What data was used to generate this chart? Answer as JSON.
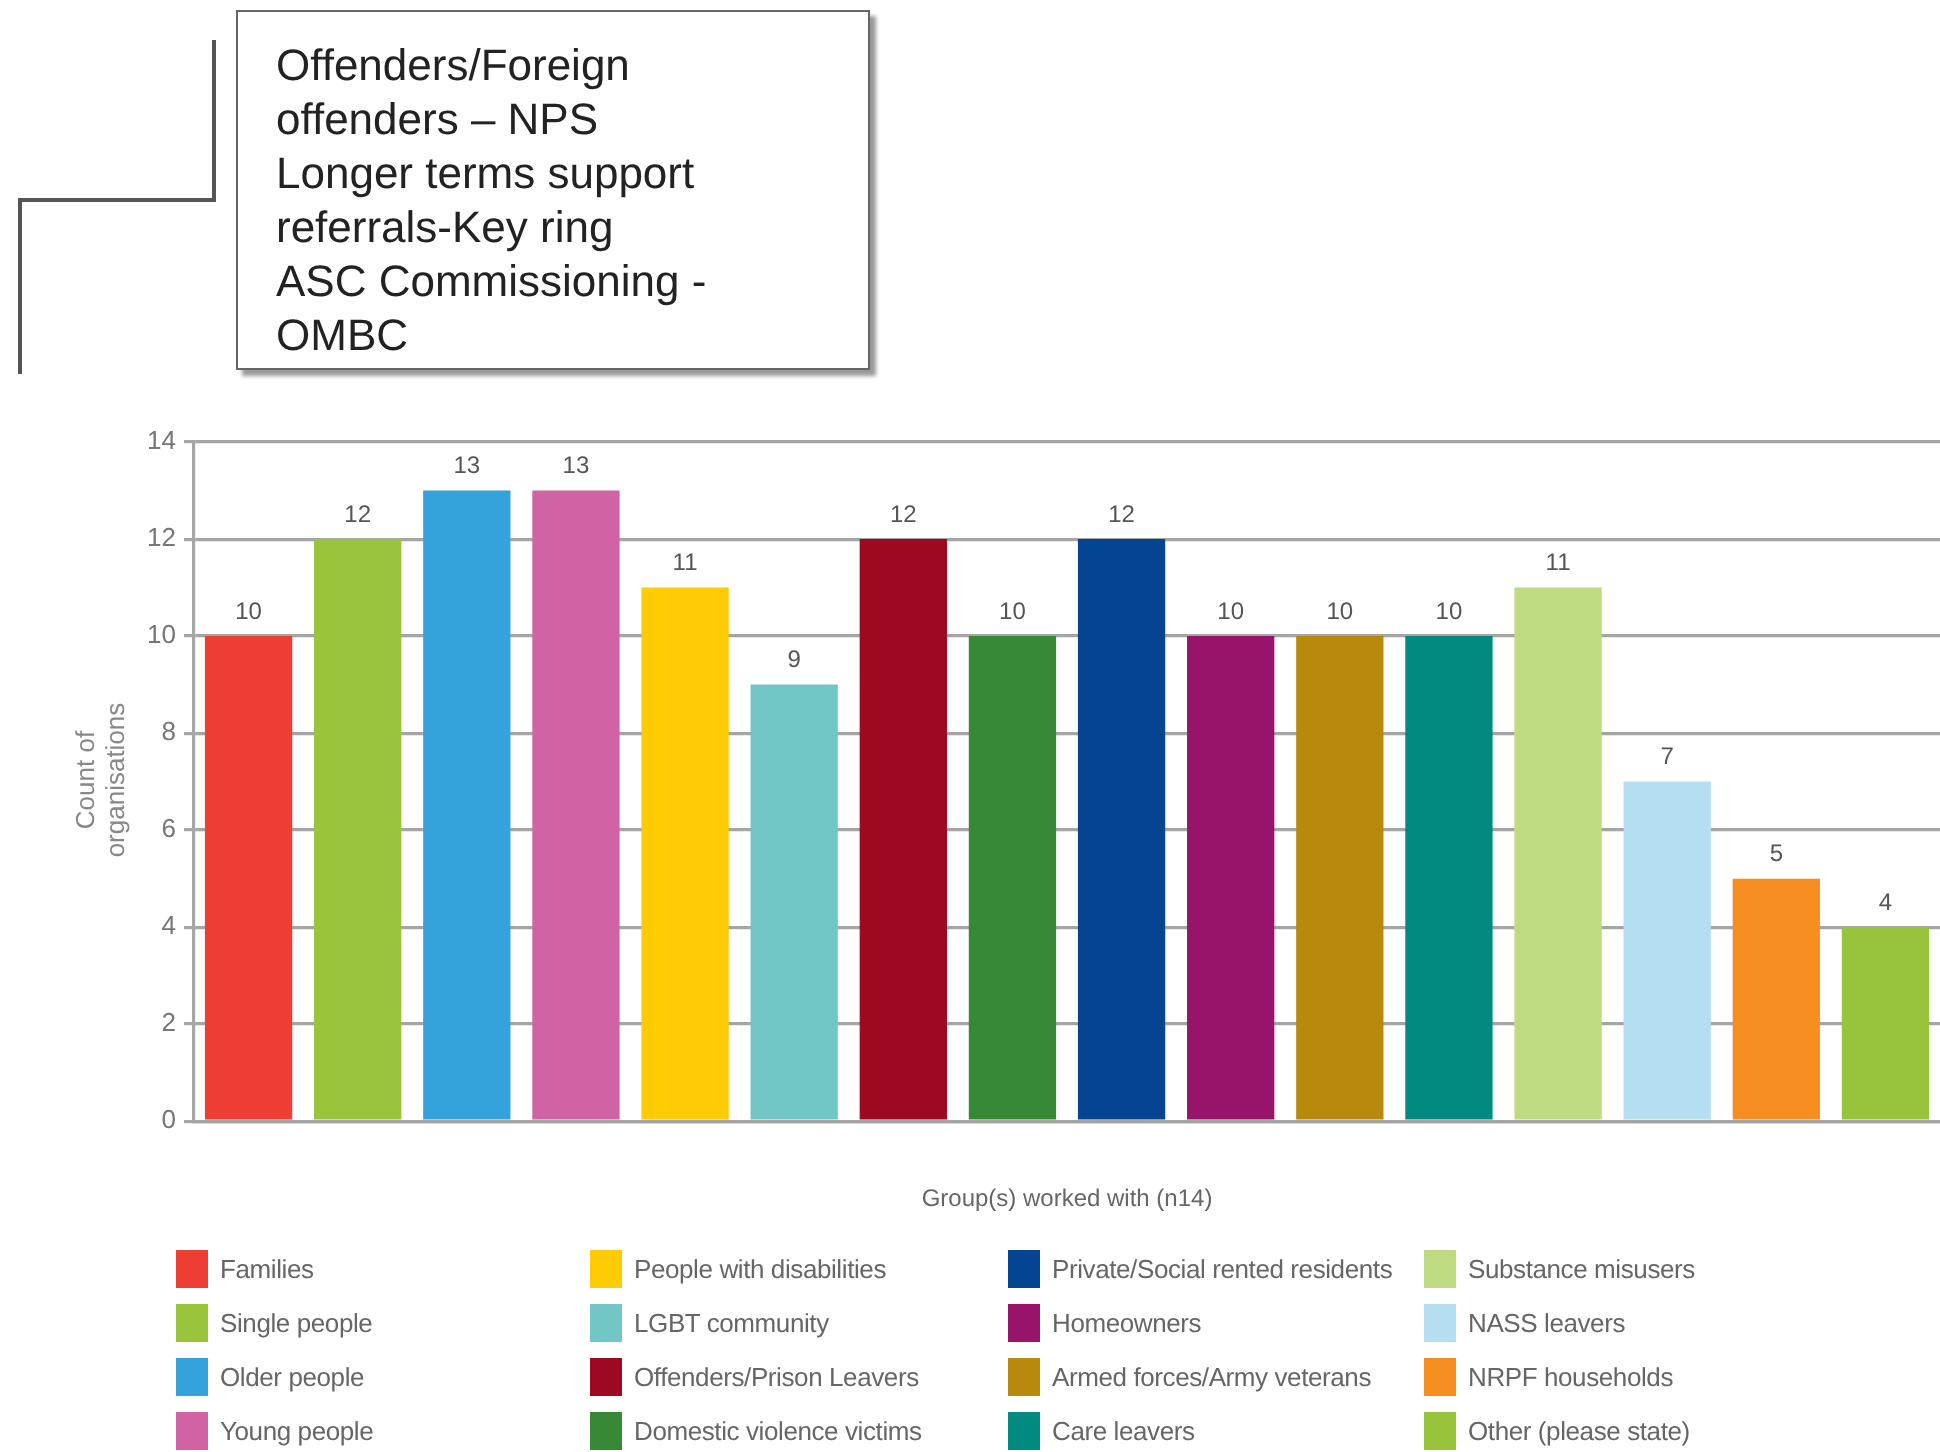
{
  "chart_data": {
    "type": "bar",
    "ylabel": "Count of organisations",
    "xlabel": "Group(s) worked with (n14)",
    "categories": [
      null,
      null,
      null,
      null,
      null,
      null,
      null,
      null,
      null,
      null,
      null,
      null,
      null,
      null,
      null,
      null
    ],
    "series": [
      {
        "name": "Families",
        "color": "#ee3e33",
        "values": [
          10,
          null,
          null,
          null,
          null,
          null,
          null,
          null,
          null,
          null,
          null,
          null,
          null,
          null,
          null,
          null
        ]
      },
      {
        "name": "Single people",
        "color": "#99c43c",
        "values": [
          null,
          12,
          null,
          null,
          null,
          null,
          null,
          null,
          null,
          null,
          null,
          null,
          null,
          null,
          null,
          null
        ]
      },
      {
        "name": "Older people",
        "color": "#34a3dc",
        "values": [
          null,
          null,
          13,
          null,
          null,
          null,
          null,
          null,
          null,
          null,
          null,
          null,
          null,
          null,
          null,
          null
        ]
      },
      {
        "name": "Young people",
        "color": "#d063a3",
        "values": [
          null,
          null,
          null,
          13,
          null,
          null,
          null,
          null,
          null,
          null,
          null,
          null,
          null,
          null,
          null,
          null
        ]
      },
      {
        "name": "People with disabilities",
        "color": "#ffcb05",
        "values": [
          null,
          null,
          null,
          null,
          11,
          null,
          null,
          null,
          null,
          null,
          null,
          null,
          null,
          null,
          null,
          null
        ]
      },
      {
        "name": "LGBT community",
        "color": "#72c7c6",
        "values": [
          null,
          null,
          null,
          null,
          null,
          9,
          null,
          null,
          null,
          null,
          null,
          null,
          null,
          null,
          null,
          null
        ]
      },
      {
        "name": "Offenders/Prison Leavers",
        "color": "#9e0820",
        "values": [
          null,
          null,
          null,
          null,
          null,
          null,
          12,
          null,
          null,
          null,
          null,
          null,
          null,
          null,
          null,
          null
        ]
      },
      {
        "name": "Domestic violence victims",
        "color": "#378936",
        "values": [
          null,
          null,
          null,
          null,
          null,
          null,
          null,
          10,
          null,
          null,
          null,
          null,
          null,
          null,
          null,
          null
        ]
      },
      {
        "name": "Private/Social rented residents",
        "color": "#044591",
        "values": [
          null,
          null,
          null,
          null,
          null,
          null,
          null,
          null,
          12,
          null,
          null,
          null,
          null,
          null,
          null,
          null
        ]
      },
      {
        "name": "Homeowners",
        "color": "#98136a",
        "values": [
          null,
          null,
          null,
          null,
          null,
          null,
          null,
          null,
          null,
          10,
          null,
          null,
          null,
          null,
          null,
          null
        ]
      },
      {
        "name": "Armed forces/Army veterans",
        "color": "#b8890d",
        "values": [
          null,
          null,
          null,
          null,
          null,
          null,
          null,
          null,
          null,
          null,
          10,
          null,
          null,
          null,
          null,
          null
        ]
      },
      {
        "name": "Care leavers",
        "color": "#018a80",
        "values": [
          null,
          null,
          null,
          null,
          null,
          null,
          null,
          null,
          null,
          null,
          null,
          10,
          null,
          null,
          null,
          null
        ]
      },
      {
        "name": "Substance misusers",
        "color": "#bfdb82",
        "values": [
          null,
          null,
          null,
          null,
          null,
          null,
          null,
          null,
          null,
          null,
          null,
          null,
          11,
          null,
          null,
          null
        ]
      },
      {
        "name": "NASS leavers",
        "color": "#b5def0",
        "values": [
          null,
          null,
          null,
          null,
          null,
          null,
          null,
          null,
          null,
          null,
          null,
          null,
          null,
          7,
          null,
          null
        ]
      },
      {
        "name": "NRPF households",
        "color": "#f58d20",
        "values": [
          null,
          null,
          null,
          null,
          null,
          null,
          null,
          null,
          null,
          null,
          null,
          null,
          null,
          null,
          5,
          null
        ]
      },
      {
        "name": "Other (please state)",
        "color": "#98c43c",
        "values": [
          null,
          null,
          null,
          null,
          null,
          null,
          null,
          null,
          null,
          null,
          null,
          null,
          null,
          null,
          null,
          4
        ]
      }
    ],
    "ylim": [
      0,
      14
    ],
    "yticks": [
      0,
      2,
      4,
      6,
      8,
      10,
      12,
      14
    ],
    "grid": "y",
    "legend": "bottom",
    "tick_labels": "y",
    "data_labels": true,
    "annotations": [
      "Offenders/Foreign offenders – NPS",
      "Longer terms support referrals-Key ring",
      "ASC Commissioning - OMBC"
    ]
  }
}
